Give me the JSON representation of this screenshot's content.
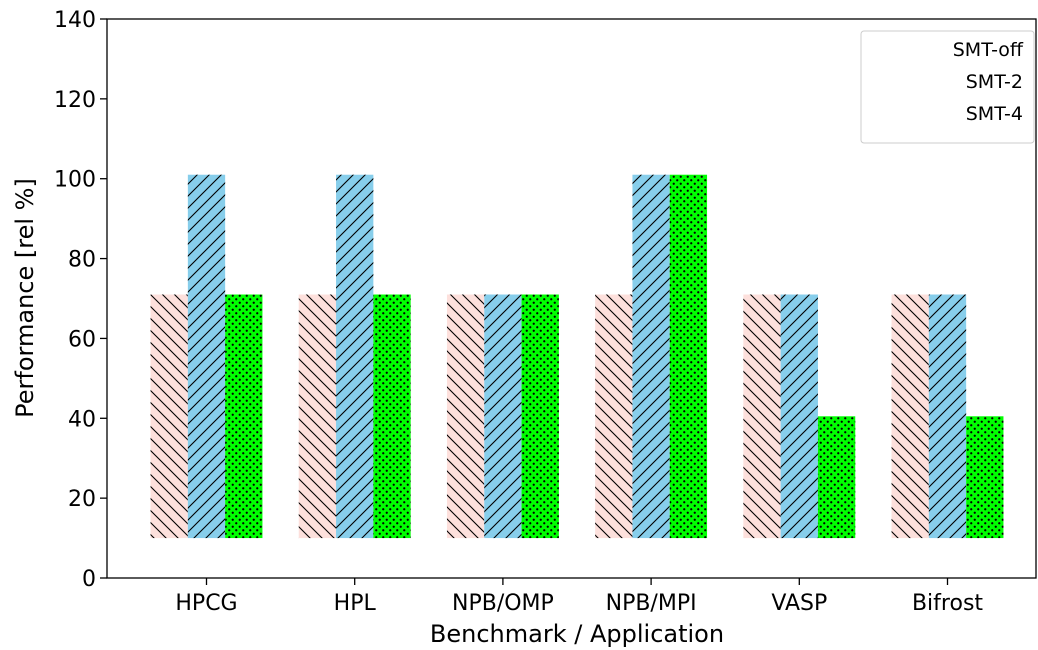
{
  "chart_data": {
    "type": "bar",
    "title": "",
    "xlabel": "Benchmark / Application",
    "ylabel": "Performance [rel %]",
    "ylim": [
      0,
      140
    ],
    "yticks": [
      0,
      20,
      40,
      60,
      80,
      100,
      120,
      140
    ],
    "grid": false,
    "legend_position": "top-right",
    "categories": [
      "HPCG",
      "HPL",
      "NPB/OMP",
      "NPB/MPI",
      "VASP",
      "Bifrost"
    ],
    "bar_base": 10,
    "series": [
      {
        "name": "SMT-off",
        "color": "#fde0dc",
        "hatch": "backslash",
        "values": [
          71,
          71,
          71,
          71,
          71,
          71
        ]
      },
      {
        "name": "SMT-2",
        "color": "#87ceeb",
        "hatch": "slash",
        "values": [
          101,
          101,
          71,
          101,
          71,
          71
        ]
      },
      {
        "name": "SMT-4",
        "color": "#00ff00",
        "hatch": "dots",
        "values": [
          71,
          71,
          71,
          101,
          40.5,
          40.5
        ]
      }
    ]
  }
}
